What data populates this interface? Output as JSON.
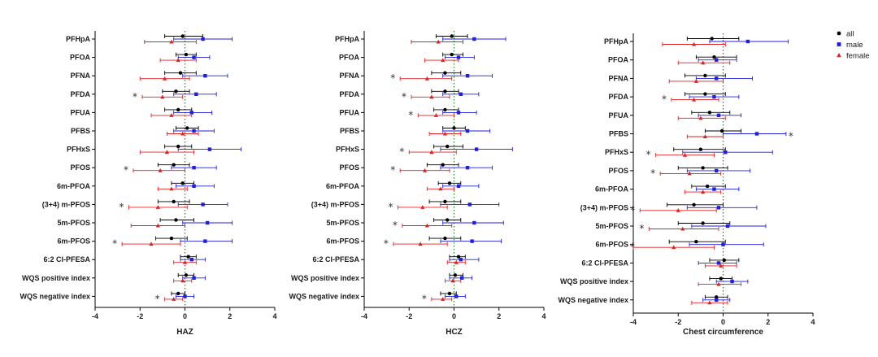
{
  "chart_data": [
    {
      "type": "scatter",
      "subtype": "forest",
      "xlabel": "HAZ",
      "xlim": [
        -4,
        4
      ],
      "xticks": [
        -4,
        -2,
        0,
        2,
        4
      ],
      "categories": [
        "PFHpA",
        "PFOA",
        "PFNA",
        "PFDA",
        "PFUA",
        "PFBS",
        "PFHxS",
        "PFOS",
        "6m-PFOA",
        "(3+4) m-PFOS",
        "5m-PFOS",
        "6m-PFOS",
        "6:2 Cl-PFESA",
        "WQS positive index",
        "WQS negative index"
      ],
      "series": [
        {
          "name": "all",
          "points": [
            [
              -0.1,
              -0.9,
              0.8
            ],
            [
              0.05,
              -0.4,
              0.5
            ],
            [
              -0.2,
              -0.9,
              0.5
            ],
            [
              -0.4,
              -1.0,
              0.2
            ],
            [
              -0.3,
              -0.9,
              0.3
            ],
            [
              0.1,
              -0.4,
              0.6
            ],
            [
              -0.3,
              -0.9,
              0.3
            ],
            [
              -0.5,
              -1.2,
              0.2
            ],
            [
              -0.1,
              -0.6,
              0.4
            ],
            [
              -0.5,
              -1.2,
              0.2
            ],
            [
              -0.4,
              -1.1,
              0.4
            ],
            [
              -0.6,
              -1.3,
              0.1
            ],
            [
              0.15,
              -0.2,
              0.5
            ],
            [
              0.05,
              -0.3,
              0.4
            ],
            [
              -0.3,
              -0.6,
              0.0
            ]
          ]
        },
        {
          "name": "male",
          "points": [
            [
              0.8,
              -0.5,
              2.1
            ],
            [
              0.4,
              -0.3,
              1.1
            ],
            [
              0.9,
              -0.1,
              1.9
            ],
            [
              0.5,
              -0.5,
              1.4
            ],
            [
              0.3,
              -0.5,
              1.2
            ],
            [
              0.4,
              -0.5,
              1.3
            ],
            [
              1.1,
              -0.3,
              2.5
            ],
            [
              0.4,
              -0.6,
              1.4
            ],
            [
              0.4,
              -0.4,
              1.3
            ],
            [
              0.8,
              -0.3,
              1.9
            ],
            [
              1.0,
              -0.1,
              2.1
            ],
            [
              0.9,
              -0.2,
              2.1
            ],
            [
              0.3,
              -0.2,
              0.9
            ],
            [
              0.4,
              -0.1,
              0.9
            ],
            [
              0.0,
              -0.4,
              0.4
            ]
          ]
        },
        {
          "name": "female",
          "points": [
            [
              -0.6,
              -1.8,
              0.5
            ],
            [
              -0.3,
              -1.1,
              0.5
            ],
            [
              -0.9,
              -2.0,
              0.2
            ],
            [
              -1.0,
              -1.9,
              -0.1
            ],
            [
              -0.6,
              -1.5,
              0.3
            ],
            [
              -0.1,
              -0.8,
              0.6
            ],
            [
              -0.8,
              -2.0,
              0.4
            ],
            [
              -1.1,
              -2.3,
              0.0
            ],
            [
              -0.6,
              -1.2,
              0.1
            ],
            [
              -1.2,
              -2.5,
              0.1
            ],
            [
              -1.2,
              -2.4,
              0.0
            ],
            [
              -1.5,
              -2.8,
              -0.2
            ],
            [
              0.0,
              -0.5,
              0.5
            ],
            [
              -0.1,
              -0.5,
              0.3
            ],
            [
              -0.5,
              -0.9,
              -0.1
            ]
          ]
        }
      ],
      "significance": [
        {
          "category": "PFDA",
          "side": "left"
        },
        {
          "category": "PFOS",
          "side": "left"
        },
        {
          "category": "(3+4) m-PFOS",
          "side": "left"
        },
        {
          "category": "6m-PFOS",
          "side": "left"
        },
        {
          "category": "WQS negative index",
          "side": "left"
        }
      ]
    },
    {
      "type": "scatter",
      "subtype": "forest",
      "xlabel": "HCZ",
      "xlim": [
        -4,
        4
      ],
      "xticks": [
        -4,
        -2,
        0,
        2,
        4
      ],
      "categories": [
        "PFHpA",
        "PFOA",
        "PFNA",
        "PFDA",
        "PFUA",
        "PFBS",
        "PFHxS",
        "PFOS",
        "6m-PFOA",
        "(3+4) m-PFOS",
        "5m-PFOS",
        "6m-PFOS",
        "6:2 Cl-PFESA",
        "WQS positive index",
        "WQS negative index"
      ],
      "series": [
        {
          "name": "all",
          "points": [
            [
              -0.1,
              -0.8,
              0.6
            ],
            [
              -0.1,
              -0.5,
              0.4
            ],
            [
              -0.4,
              -1.0,
              0.3
            ],
            [
              -0.4,
              -1.0,
              0.2
            ],
            [
              -0.4,
              -0.9,
              0.2
            ],
            [
              0.0,
              -0.5,
              0.5
            ],
            [
              -0.3,
              -0.9,
              0.4
            ],
            [
              -0.5,
              -1.2,
              0.2
            ],
            [
              -0.2,
              -0.7,
              0.3
            ],
            [
              -0.4,
              -1.1,
              0.3
            ],
            [
              -0.3,
              -0.9,
              0.3
            ],
            [
              -0.4,
              -1.1,
              0.3
            ],
            [
              0.2,
              -0.2,
              0.5
            ],
            [
              0.05,
              -0.2,
              0.4
            ],
            [
              -0.2,
              -0.6,
              0.1
            ]
          ]
        },
        {
          "name": "male",
          "points": [
            [
              0.9,
              -0.5,
              2.3
            ],
            [
              0.2,
              -0.4,
              0.9
            ],
            [
              0.6,
              -0.5,
              1.7
            ],
            [
              0.3,
              -0.5,
              1.1
            ],
            [
              0.2,
              -0.5,
              1.0
            ],
            [
              0.6,
              -0.5,
              1.6
            ],
            [
              1.0,
              -0.6,
              2.6
            ],
            [
              0.6,
              -0.6,
              1.7
            ],
            [
              0.2,
              -0.5,
              1.1
            ],
            [
              0.7,
              -0.6,
              2.0
            ],
            [
              0.9,
              -0.5,
              2.2
            ],
            [
              0.8,
              -0.6,
              2.1
            ],
            [
              0.3,
              -0.2,
              1.1
            ],
            [
              0.35,
              -0.2,
              0.8
            ],
            [
              0.1,
              -0.4,
              0.5
            ]
          ]
        },
        {
          "name": "female",
          "points": [
            [
              -0.7,
              -1.9,
              0.4
            ],
            [
              -0.5,
              -1.3,
              0.2
            ],
            [
              -1.2,
              -2.4,
              -0.1
            ],
            [
              -1.0,
              -1.9,
              -0.2
            ],
            [
              -0.8,
              -1.6,
              0.0
            ],
            [
              -0.4,
              -1.1,
              0.3
            ],
            [
              -1.0,
              -2.0,
              0.1
            ],
            [
              -1.3,
              -2.4,
              -0.2
            ],
            [
              -0.6,
              -1.2,
              0.0
            ],
            [
              -1.4,
              -2.5,
              -0.3
            ],
            [
              -1.2,
              -2.3,
              -0.1
            ],
            [
              -1.5,
              -2.7,
              -0.3
            ],
            [
              0.1,
              -0.3,
              0.5
            ],
            [
              -0.05,
              -0.4,
              0.3
            ],
            [
              -0.5,
              -1.0,
              -0.1
            ]
          ]
        }
      ],
      "significance": [
        {
          "category": "PFNA",
          "side": "left"
        },
        {
          "category": "PFDA",
          "side": "left"
        },
        {
          "category": "PFUA",
          "side": "left"
        },
        {
          "category": "PFHxS",
          "side": "left"
        },
        {
          "category": "PFOS",
          "side": "left"
        },
        {
          "category": "(3+4) m-PFOS",
          "side": "left"
        },
        {
          "category": "5m-PFOS",
          "side": "left"
        },
        {
          "category": "6m-PFOS",
          "side": "left"
        },
        {
          "category": "WQS negative index",
          "side": "left"
        }
      ]
    },
    {
      "type": "scatter",
      "subtype": "forest",
      "xlabel": "Chest circumference",
      "xlim": [
        -4,
        4
      ],
      "xticks": [
        -4,
        -2,
        0,
        2,
        4
      ],
      "categories": [
        "PFHpA",
        "PFOA",
        "PFNA",
        "PFDA",
        "PFUA",
        "PFBS",
        "PFHxS",
        "PFOS",
        "6m-PFOA",
        "(3+4) m-PFOS",
        "5m-PFOS",
        "6m-PFOS",
        "6:2 Cl-PFESA",
        "WQS positive index",
        "WQS negative index"
      ],
      "series": [
        {
          "name": "all",
          "points": [
            [
              -0.5,
              -1.6,
              0.7
            ],
            [
              -0.4,
              -1.2,
              0.6
            ],
            [
              -0.8,
              -1.7,
              0.1
            ],
            [
              -0.8,
              -1.7,
              0.1
            ],
            [
              -0.6,
              -1.4,
              0.3
            ],
            [
              -0.05,
              -0.8,
              0.8
            ],
            [
              -1.0,
              -2.2,
              0.1
            ],
            [
              -0.9,
              -2.0,
              0.2
            ],
            [
              -0.7,
              -1.4,
              0.1
            ],
            [
              -1.3,
              -2.5,
              0.0
            ],
            [
              -0.9,
              -2.0,
              0.3
            ],
            [
              -1.2,
              -2.4,
              0.1
            ],
            [
              0.05,
              -0.6,
              0.7
            ],
            [
              -0.1,
              -0.6,
              0.4
            ],
            [
              -0.3,
              -0.8,
              0.2
            ]
          ]
        },
        {
          "name": "male",
          "points": [
            [
              1.1,
              -0.6,
              2.9
            ],
            [
              -0.3,
              -1.1,
              0.6
            ],
            [
              -0.3,
              -1.2,
              1.3
            ],
            [
              -0.4,
              -1.5,
              0.7
            ],
            [
              -0.2,
              -1.1,
              0.8
            ],
            [
              1.5,
              0.0,
              2.8
            ],
            [
              0.1,
              -1.8,
              2.2
            ],
            [
              -0.3,
              -1.6,
              1.2
            ],
            [
              -0.4,
              -1.2,
              0.7
            ],
            [
              -0.2,
              -1.6,
              1.5
            ],
            [
              0.2,
              -1.4,
              1.9
            ],
            [
              0.0,
              -1.5,
              1.8
            ],
            [
              -0.2,
              -1.1,
              0.6
            ],
            [
              0.4,
              -0.3,
              1.1
            ],
            [
              -0.3,
              -0.9,
              0.3
            ]
          ]
        },
        {
          "name": "female",
          "points": [
            [
              -1.3,
              -2.7,
              0.1
            ],
            [
              -0.9,
              -2.0,
              0.3
            ],
            [
              -1.2,
              -2.4,
              0.0
            ],
            [
              -1.3,
              -2.3,
              -0.2
            ],
            [
              -1.0,
              -2.0,
              0.1
            ],
            [
              -0.8,
              -1.6,
              0.0
            ],
            [
              -1.7,
              -3.0,
              -0.4
            ],
            [
              -1.5,
              -2.8,
              -0.1
            ],
            [
              -0.9,
              -1.7,
              -0.1
            ],
            [
              -2.0,
              -3.7,
              -0.3
            ],
            [
              -1.8,
              -3.3,
              -0.2
            ],
            [
              -2.2,
              -4.0,
              -0.4
            ],
            [
              -0.1,
              -0.8,
              0.6
            ],
            [
              -0.2,
              -1.1,
              0.8
            ],
            [
              -0.6,
              -1.4,
              0.2
            ]
          ]
        }
      ],
      "significance": [
        {
          "category": "PFDA",
          "side": "left"
        },
        {
          "category": "PFBS",
          "side": "right"
        },
        {
          "category": "PFHxS",
          "side": "left"
        },
        {
          "category": "PFOS",
          "side": "left"
        },
        {
          "category": "(3+4) m-PFOS",
          "side": "left"
        },
        {
          "category": "5m-PFOS",
          "side": "left"
        },
        {
          "category": "6m-PFOS",
          "side": "left"
        }
      ]
    }
  ],
  "legend": {
    "placement": "top-right",
    "items": [
      {
        "label": "all",
        "color": "#000000",
        "marker": "circle"
      },
      {
        "label": "male",
        "color": "#1f1fe0",
        "marker": "square"
      },
      {
        "label": "female",
        "color": "#e02020",
        "marker": "triangle"
      }
    ]
  },
  "significance_marker": "*",
  "colors": {
    "all": "#000000",
    "male": "#1f1fe0",
    "female": "#e02020",
    "axis": "#000000",
    "reference_line": "#2a7a2a"
  }
}
